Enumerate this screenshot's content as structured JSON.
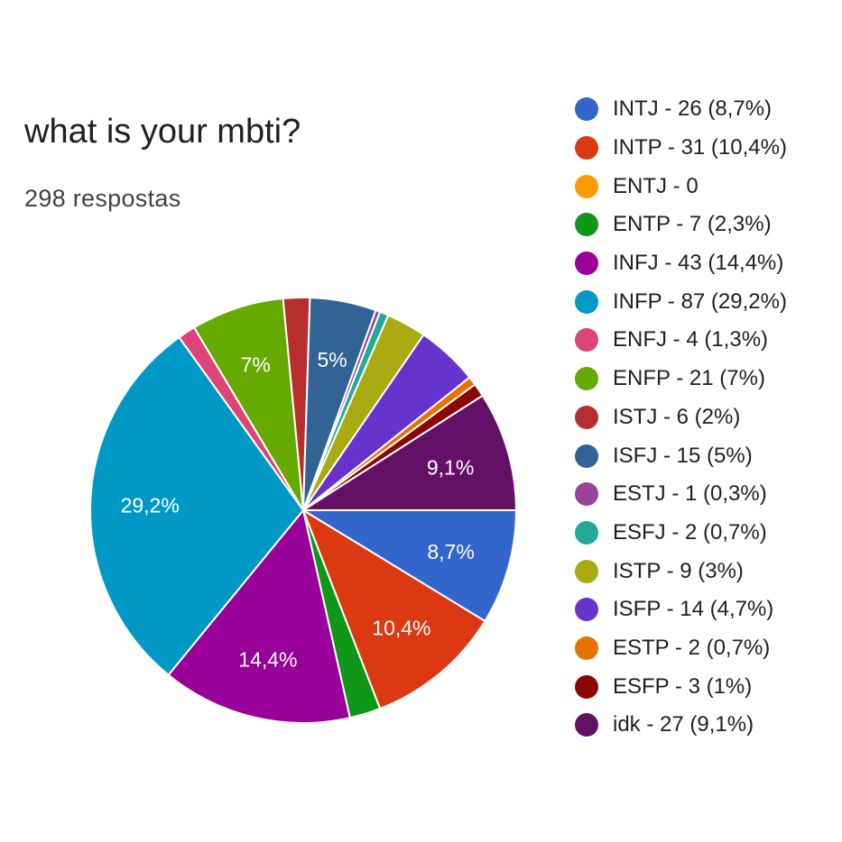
{
  "chart_data": {
    "type": "pie",
    "title": "what is your mbti?",
    "subtitle": "298 respostas",
    "legend_position": "right",
    "slices": [
      {
        "label": "INTJ - 26 (8,7%)",
        "value": 26,
        "color": "#3366cc",
        "slice_label": "8,7%"
      },
      {
        "label": "INTP - 31 (10,4%)",
        "value": 31,
        "color": "#dc3912",
        "slice_label": "10,4%"
      },
      {
        "label": "ENTJ - 0",
        "value": 0,
        "color": "#ff9900",
        "slice_label": ""
      },
      {
        "label": "ENTP - 7 (2,3%)",
        "value": 7,
        "color": "#109618",
        "slice_label": ""
      },
      {
        "label": "INFJ - 43 (14,4%)",
        "value": 43,
        "color": "#990099",
        "slice_label": "14,4%"
      },
      {
        "label": "INFP - 87 (29,2%)",
        "value": 87,
        "color": "#0099c6",
        "slice_label": "29,2%"
      },
      {
        "label": "ENFJ - 4 (1,3%)",
        "value": 4,
        "color": "#dd4477",
        "slice_label": ""
      },
      {
        "label": "ENFP - 21 (7%)",
        "value": 21,
        "color": "#66aa00",
        "slice_label": "7%"
      },
      {
        "label": "ISTJ - 6 (2%)",
        "value": 6,
        "color": "#b82e2e",
        "slice_label": ""
      },
      {
        "label": "ISFJ - 15 (5%)",
        "value": 15,
        "color": "#316395",
        "slice_label": "5%"
      },
      {
        "label": "ESTJ - 1 (0,3%)",
        "value": 1,
        "color": "#994499",
        "slice_label": ""
      },
      {
        "label": "ESFJ - 2 (0,7%)",
        "value": 2,
        "color": "#22aa99",
        "slice_label": ""
      },
      {
        "label": "ISTP - 9 (3%)",
        "value": 9,
        "color": "#aaaa11",
        "slice_label": ""
      },
      {
        "label": "ISFP - 14 (4,7%)",
        "value": 14,
        "color": "#6633cc",
        "slice_label": ""
      },
      {
        "label": "ESTP - 2 (0,7%)",
        "value": 2,
        "color": "#e67300",
        "slice_label": ""
      },
      {
        "label": "ESFP - 3 (1%)",
        "value": 3,
        "color": "#8b0707",
        "slice_label": ""
      },
      {
        "label": "idk - 27 (9,1%)",
        "value": 27,
        "color": "#651067",
        "slice_label": "9,1%"
      }
    ]
  }
}
